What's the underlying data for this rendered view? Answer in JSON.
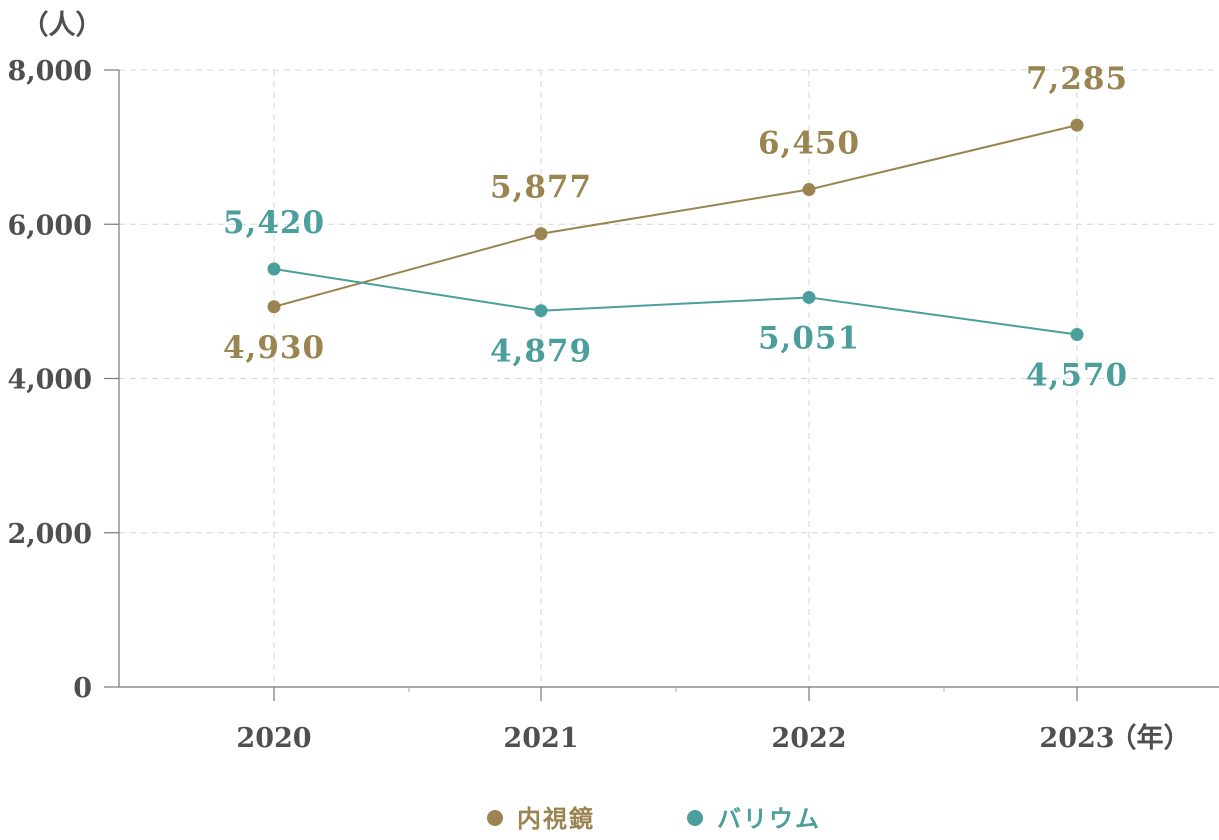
{
  "chart_data": {
    "type": "line",
    "y_unit": "（人）",
    "x_unit": "（年）",
    "categories": [
      "2020",
      "2021",
      "2022",
      "2023"
    ],
    "ylim": [
      0,
      8000
    ],
    "yticks": [
      0,
      2000,
      4000,
      6000,
      8000
    ],
    "ytick_labels": [
      "0",
      "2,000",
      "4,000",
      "6,000",
      "8,000"
    ],
    "grid": true,
    "legend_position": "bottom",
    "series": [
      {
        "name": "内視鏡",
        "color": "#9a844f",
        "values": [
          4930,
          5877,
          6450,
          7285
        ],
        "labels": [
          "4,930",
          "5,877",
          "6,450",
          "7,285"
        ],
        "label_positions": [
          "below",
          "above",
          "above",
          "above"
        ]
      },
      {
        "name": "バリウム",
        "color": "#4a9e9b",
        "values": [
          5420,
          4879,
          5051,
          4570
        ],
        "labels": [
          "5,420",
          "4,879",
          "5,051",
          "4,570"
        ],
        "label_positions": [
          "above",
          "below",
          "below",
          "below"
        ]
      }
    ]
  }
}
